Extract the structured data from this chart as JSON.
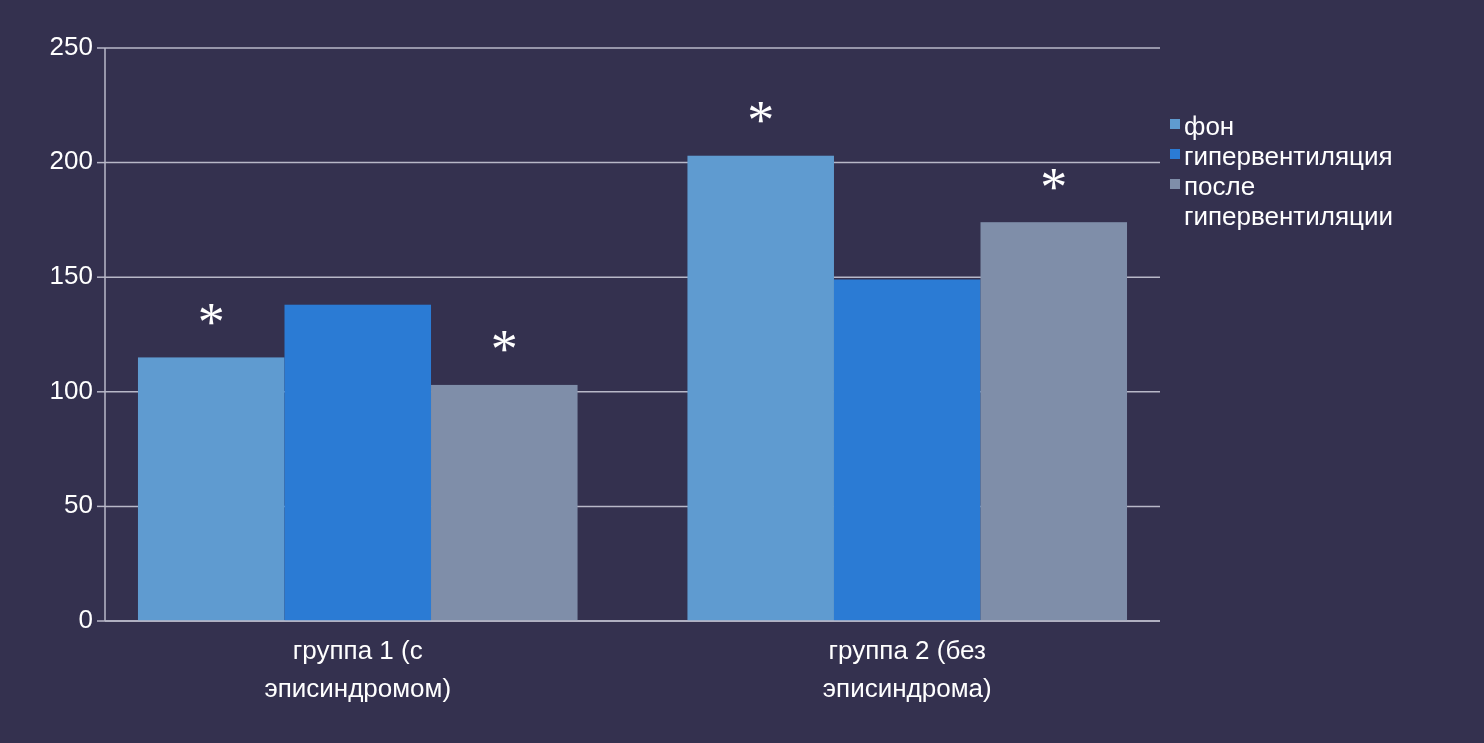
{
  "chart_data": {
    "type": "bar",
    "categories": [
      "группа 1 (с эписиндромом)",
      "группа 2 (без эписиндрома)"
    ],
    "series": [
      {
        "name": "фон",
        "color": "#5f9bd0",
        "values": [
          115,
          203
        ]
      },
      {
        "name": "гипервентиляция",
        "color": "#2b7bd4",
        "values": [
          138,
          149
        ]
      },
      {
        "name": "после гипервентиляции",
        "color": "#7f8ea9",
        "values": [
          103,
          174
        ]
      }
    ],
    "ylim": [
      0,
      250
    ],
    "yticks": [
      0,
      50,
      100,
      150,
      200,
      250
    ],
    "grid": "y",
    "legend": "right",
    "annotations": [
      "*",
      "*",
      "*",
      "*"
    ]
  }
}
